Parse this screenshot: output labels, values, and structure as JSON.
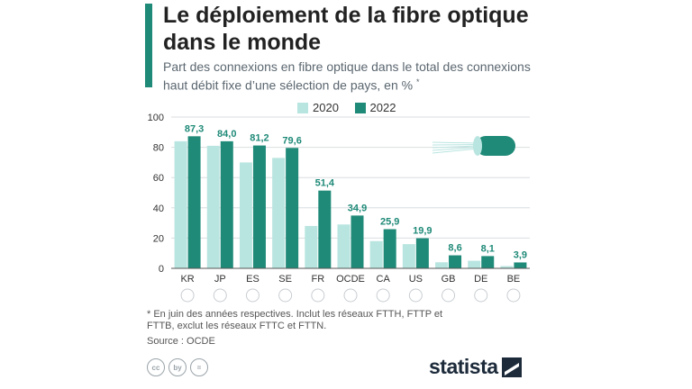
{
  "title": "Le déploiement de la fibre optique dans le monde",
  "subtitle": "Part des connexions en fibre optique dans le total des connexions haut débit fixe d’une sélection de pays, en %",
  "subtitle_mark": "*",
  "footnote": "* En juin des années respectives. Inclut les réseaux FTTH, FTTP et FTTB, exclut les réseaux FTTC et FTTN.",
  "source": "Source : OCDE",
  "brand": "statista",
  "license_icons": [
    "cc",
    "by",
    "="
  ],
  "colors": {
    "s2020": "#b9e5e0",
    "s2022": "#1f8a78",
    "accent": "#1f8a78",
    "grid": "#d9dde0",
    "label": "#1f8a78"
  },
  "chart_data": {
    "type": "bar",
    "categories": [
      "KR",
      "JP",
      "ES",
      "SE",
      "FR",
      "OCDE",
      "CA",
      "US",
      "GB",
      "DE",
      "BE"
    ],
    "series": [
      {
        "name": "2020",
        "values": [
          84,
          81,
          70,
          73,
          28,
          29,
          18,
          16,
          4,
          5,
          1.5
        ]
      },
      {
        "name": "2022",
        "values": [
          87.3,
          84.0,
          81.2,
          79.6,
          51.4,
          34.9,
          25.9,
          19.9,
          8.6,
          8.1,
          3.9
        ]
      }
    ],
    "data_labels": [
      "87,3",
      "84,0",
      "81,2",
      "79,6",
      "51,4",
      "34,9",
      "25,9",
      "19,9",
      "8,6",
      "8,1",
      "3,9"
    ],
    "yticks": [
      "0",
      "20",
      "40",
      "60",
      "80",
      "100"
    ],
    "ylim": [
      0,
      100
    ],
    "legend_position": "top",
    "grid": true
  }
}
